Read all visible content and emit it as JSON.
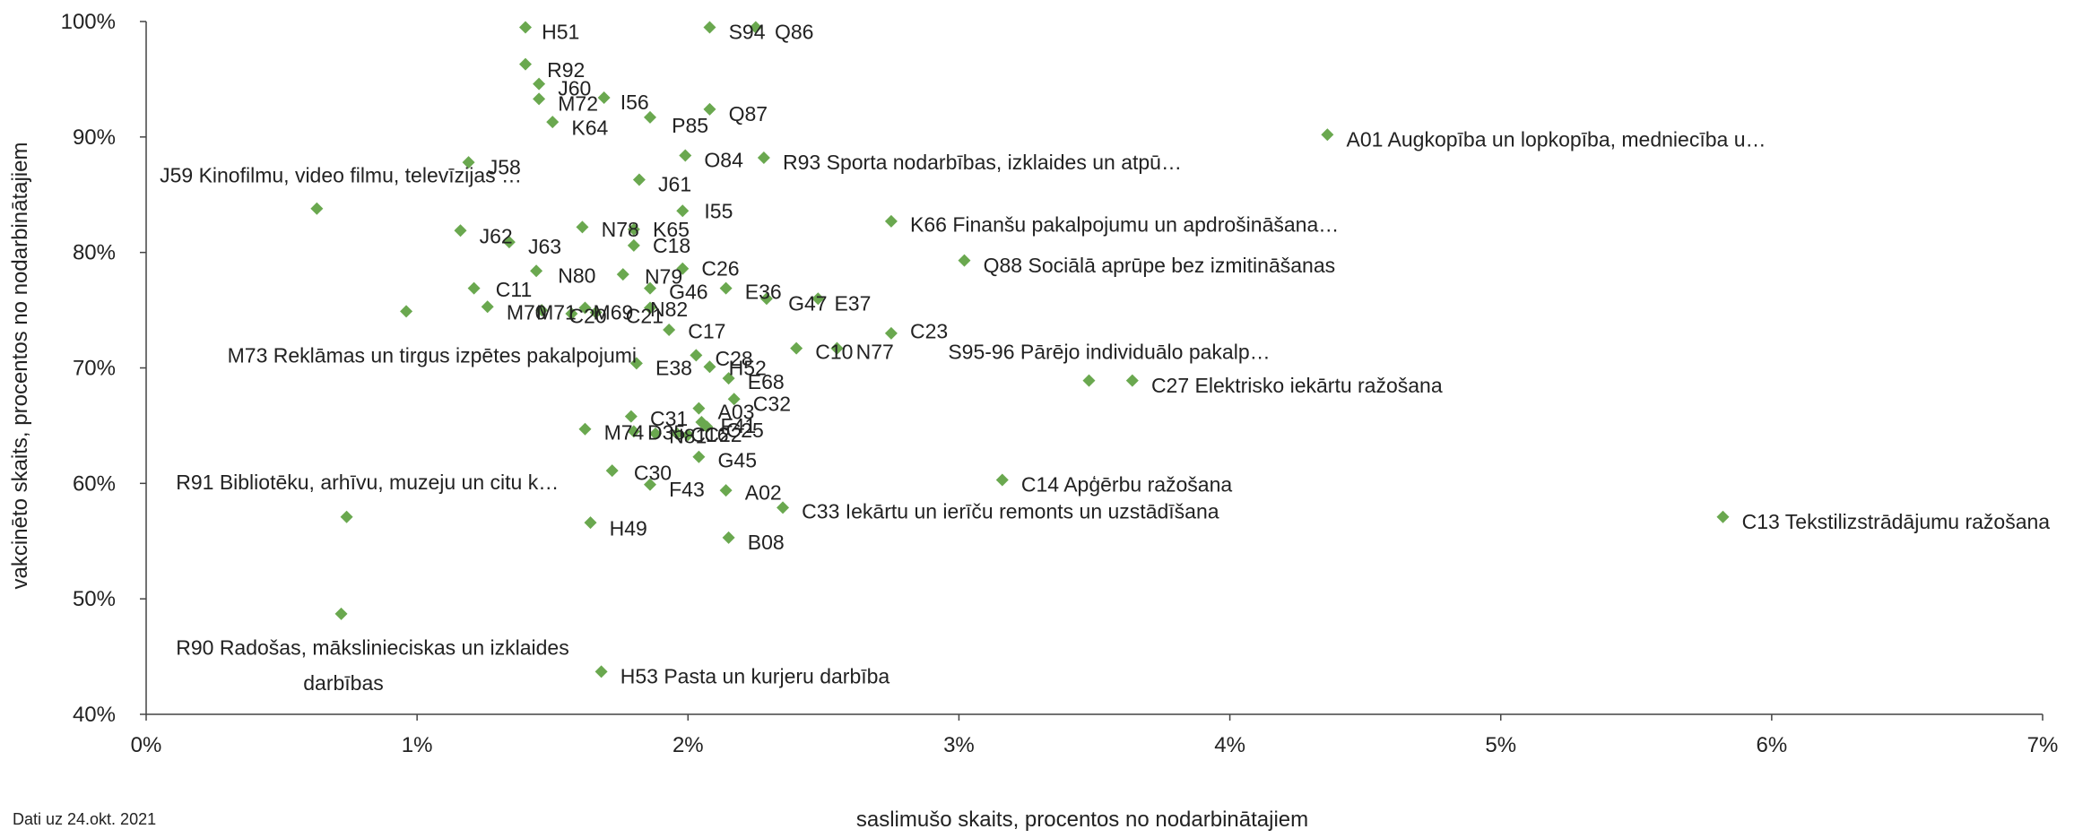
{
  "chart_data": {
    "type": "scatter",
    "xlabel": "saslimušo skaits, procentos no nodarbinātajiem",
    "ylabel": "vakcinēto skaits, procentos no nodarbinātajiem",
    "xlim": [
      0,
      7
    ],
    "ylim": [
      40,
      100
    ],
    "x_ticks": [
      "0%",
      "1%",
      "2%",
      "3%",
      "4%",
      "5%",
      "6%",
      "7%"
    ],
    "y_ticks": [
      "40%",
      "50%",
      "60%",
      "70%",
      "80%",
      "90%",
      "100%"
    ],
    "marker_color": "#6aa84f",
    "grid": false,
    "points": [
      {
        "label": "H51",
        "x": 1.4,
        "y": 99.5
      },
      {
        "label": "S94",
        "x": 2.08,
        "y": 99.5
      },
      {
        "label": "Q86",
        "x": 2.25,
        "y": 99.5
      },
      {
        "label": "R92",
        "x": 1.4,
        "y": 96.3
      },
      {
        "label": "J60",
        "x": 1.45,
        "y": 94.6
      },
      {
        "label": "M72",
        "x": 1.45,
        "y": 93.3
      },
      {
        "label": "I56",
        "x": 1.69,
        "y": 93.4
      },
      {
        "label": "Q87",
        "x": 2.08,
        "y": 92.4
      },
      {
        "label": "P85",
        "x": 1.86,
        "y": 91.7
      },
      {
        "label": "K64",
        "x": 1.5,
        "y": 91.3
      },
      {
        "label": "A01 Augkopība un lopkopība, medniecība u…",
        "x": 4.36,
        "y": 90.2
      },
      {
        "label": "O84",
        "x": 1.99,
        "y": 88.4
      },
      {
        "label": "R93 Sporta nodarbības, izklaides un atpū…",
        "x": 2.28,
        "y": 88.2
      },
      {
        "label": "J58",
        "x": 1.19,
        "y": 87.8
      },
      {
        "label": "J61",
        "x": 1.82,
        "y": 86.3
      },
      {
        "label": "J59 Kinofilmu, video filmu, televīzijas …",
        "x": 0.63,
        "y": 83.8
      },
      {
        "label": "I55",
        "x": 1.98,
        "y": 83.6
      },
      {
        "label": "K66 Finanšu pakalpojumu un apdrošināšana…",
        "x": 2.75,
        "y": 82.7
      },
      {
        "label": "N78",
        "x": 1.61,
        "y": 82.2
      },
      {
        "label": "K65",
        "x": 1.8,
        "y": 82.0
      },
      {
        "label": "J62",
        "x": 1.16,
        "y": 81.9
      },
      {
        "label": "J63",
        "x": 1.34,
        "y": 80.9
      },
      {
        "label": "C18",
        "x": 1.8,
        "y": 80.6
      },
      {
        "label": "Q88 Sociālā aprūpe bez izmitināšanas",
        "x": 3.02,
        "y": 79.3
      },
      {
        "label": "N80",
        "x": 1.44,
        "y": 78.4
      },
      {
        "label": "C26",
        "x": 1.98,
        "y": 78.6
      },
      {
        "label": "N79",
        "x": 1.76,
        "y": 78.1
      },
      {
        "label": "C11",
        "x": 1.21,
        "y": 76.9
      },
      {
        "label": "G46",
        "x": 1.86,
        "y": 76.9
      },
      {
        "label": "E36",
        "x": 2.14,
        "y": 76.9
      },
      {
        "label": "G47",
        "x": 2.29,
        "y": 76.0
      },
      {
        "label": "E37",
        "x": 2.48,
        "y": 76.0
      },
      {
        "label": "M70",
        "x": 1.26,
        "y": 75.3
      },
      {
        "label": "M71",
        "x": 1.46,
        "y": 75.0
      },
      {
        "label": "M69",
        "x": 1.62,
        "y": 75.2
      },
      {
        "label": "C20",
        "x": 1.57,
        "y": 74.7
      },
      {
        "label": "C21",
        "x": 1.66,
        "y": 74.8
      },
      {
        "label": "N82",
        "x": 1.86,
        "y": 75.2
      },
      {
        "label": "M73 Reklāmas un tirgus izpētes pakalpojumi",
        "x": 0.96,
        "y": 74.9
      },
      {
        "label": "C17",
        "x": 1.93,
        "y": 73.3
      },
      {
        "label": "C23",
        "x": 2.75,
        "y": 73.0
      },
      {
        "label": "C10",
        "x": 2.4,
        "y": 71.7
      },
      {
        "label": "N77",
        "x": 2.55,
        "y": 71.7
      },
      {
        "label": "S95-96 Pārējo individuālo pakalp…",
        "x": 2.55,
        "y": 71.7
      },
      {
        "label": "E38",
        "x": 1.81,
        "y": 70.4
      },
      {
        "label": "C28",
        "x": 2.03,
        "y": 71.1
      },
      {
        "label": "H52",
        "x": 2.08,
        "y": 70.1
      },
      {
        "label": "E68",
        "x": 2.15,
        "y": 69.1
      },
      {
        "label": "C27 Elektrisko iekārtu ražošana",
        "x": 3.48,
        "y": 68.9
      },
      {
        "label": "C27 Elektrisko iekārtu ražošana",
        "x": 3.64,
        "y": 68.9
      },
      {
        "label": "C32",
        "x": 2.17,
        "y": 67.3
      },
      {
        "label": "A03",
        "x": 2.04,
        "y": 66.5
      },
      {
        "label": "C31",
        "x": 1.79,
        "y": 65.8
      },
      {
        "label": "F41",
        "x": 2.05,
        "y": 65.3
      },
      {
        "label": "C25",
        "x": 2.07,
        "y": 64.9
      },
      {
        "label": "M74",
        "x": 1.62,
        "y": 64.7
      },
      {
        "label": "D35",
        "x": 1.8,
        "y": 64.5
      },
      {
        "label": "N81",
        "x": 1.88,
        "y": 64.3
      },
      {
        "label": "C16",
        "x": 1.96,
        "y": 64.3
      },
      {
        "label": "C22",
        "x": 2.0,
        "y": 64.2
      },
      {
        "label": "G45",
        "x": 2.04,
        "y": 62.3
      },
      {
        "label": "C30",
        "x": 1.72,
        "y": 61.1
      },
      {
        "label": "C14 Apģērbu ražošana",
        "x": 3.16,
        "y": 60.3
      },
      {
        "label": "F43",
        "x": 1.86,
        "y": 59.9
      },
      {
        "label": "A02",
        "x": 2.14,
        "y": 59.4
      },
      {
        "label": "C33 Iekārtu un ierīču remonts un uzstādīšana",
        "x": 2.35,
        "y": 57.9
      },
      {
        "label": "R91 Bibliotēku, arhīvu, muzeju un citu k…",
        "x": 0.74,
        "y": 57.1
      },
      {
        "label": "C13 Tekstilizstrādājumu ražošana",
        "x": 5.82,
        "y": 57.1
      },
      {
        "label": "H49",
        "x": 1.64,
        "y": 56.6
      },
      {
        "label": "B08",
        "x": 2.15,
        "y": 55.3
      },
      {
        "label": "R90 Radošas, mākslinieciskas un izklaides darbības",
        "x": 0.72,
        "y": 48.7
      },
      {
        "label": "H53 Pasta un kurjeru darbība",
        "x": 1.68,
        "y": 43.7
      }
    ],
    "labels": [
      {
        "text": "H51",
        "x": 1.46,
        "y": 99.1
      },
      {
        "text": "S94",
        "x": 2.15,
        "y": 99.1
      },
      {
        "text": "Q86",
        "x": 2.32,
        "y": 99.1
      },
      {
        "text": "R92",
        "x": 1.48,
        "y": 95.8
      },
      {
        "text": "J60",
        "x": 1.52,
        "y": 94.2
      },
      {
        "text": "M72",
        "x": 1.52,
        "y": 92.9
      },
      {
        "text": "I56",
        "x": 1.75,
        "y": 93.0
      },
      {
        "text": "Q87",
        "x": 2.15,
        "y": 92.0
      },
      {
        "text": "P85",
        "x": 1.94,
        "y": 91.0
      },
      {
        "text": "K64",
        "x": 1.57,
        "y": 90.8
      },
      {
        "text": "A01 Augkopība un lopkopība, medniecība u…",
        "x": 4.43,
        "y": 89.8
      },
      {
        "text": "O84",
        "x": 2.06,
        "y": 88.0
      },
      {
        "text": "R93 Sporta nodarbības, izklaides un atpū…",
        "x": 2.35,
        "y": 87.8
      },
      {
        "text": "J58",
        "x": 1.26,
        "y": 87.4
      },
      {
        "text": "J61",
        "x": 1.89,
        "y": 85.9
      },
      {
        "text": "J59 Kinofilmu, video filmu, televīzijas …",
        "x": 0.05,
        "y": 86.7
      },
      {
        "text": "I55",
        "x": 2.06,
        "y": 83.6
      },
      {
        "text": "K66 Finanšu pakalpojumu un apdrošināšana…",
        "x": 2.82,
        "y": 82.4
      },
      {
        "text": "N78",
        "x": 1.68,
        "y": 82.0
      },
      {
        "text": "K65",
        "x": 1.87,
        "y": 82.0
      },
      {
        "text": "J62",
        "x": 1.23,
        "y": 81.4
      },
      {
        "text": "J63",
        "x": 1.41,
        "y": 80.5
      },
      {
        "text": "C18",
        "x": 1.87,
        "y": 80.6
      },
      {
        "text": "Q88 Sociālā aprūpe bez izmitināšanas",
        "x": 3.09,
        "y": 78.9
      },
      {
        "text": "N80",
        "x": 1.52,
        "y": 78.0
      },
      {
        "text": "C26",
        "x": 2.05,
        "y": 78.6
      },
      {
        "text": "N79",
        "x": 1.84,
        "y": 77.9
      },
      {
        "text": "C11",
        "x": 1.29,
        "y": 76.8
      },
      {
        "text": "G46",
        "x": 1.93,
        "y": 76.6
      },
      {
        "text": "E36",
        "x": 2.21,
        "y": 76.6
      },
      {
        "text": "G47",
        "x": 2.37,
        "y": 75.6
      },
      {
        "text": "E37",
        "x": 2.54,
        "y": 75.6
      },
      {
        "text": "M70",
        "x": 1.33,
        "y": 74.8
      },
      {
        "text": "M71",
        "x": 1.44,
        "y": 74.8
      },
      {
        "text": "M69",
        "x": 1.65,
        "y": 74.8
      },
      {
        "text": "C20",
        "x": 1.56,
        "y": 74.5
      },
      {
        "text": "C21",
        "x": 1.77,
        "y": 74.5
      },
      {
        "text": "N82",
        "x": 1.86,
        "y": 75.1
      },
      {
        "text": "M73 Reklāmas un tirgus izpētes pakalpojumi",
        "x": 0.3,
        "y": 71.1
      },
      {
        "text": "C17",
        "x": 2.0,
        "y": 73.2
      },
      {
        "text": "C23",
        "x": 2.82,
        "y": 73.2
      },
      {
        "text": "C10",
        "x": 2.47,
        "y": 71.4
      },
      {
        "text": "N77",
        "x": 2.62,
        "y": 71.4
      },
      {
        "text": "S95-96 Pārējo individuālo pakalp…",
        "x": 2.96,
        "y": 71.4
      },
      {
        "text": "E38",
        "x": 1.88,
        "y": 70.0
      },
      {
        "text": "C28",
        "x": 2.1,
        "y": 70.8
      },
      {
        "text": "H52",
        "x": 2.15,
        "y": 70.0
      },
      {
        "text": "E68",
        "x": 2.22,
        "y": 68.8
      },
      {
        "text": "C27 Elektrisko iekārtu ražošana",
        "x": 3.71,
        "y": 68.5
      },
      {
        "text": "C32",
        "x": 2.24,
        "y": 66.9
      },
      {
        "text": "A03",
        "x": 2.11,
        "y": 66.2
      },
      {
        "text": "C31",
        "x": 1.86,
        "y": 65.6
      },
      {
        "text": "F41",
        "x": 2.12,
        "y": 65.0
      },
      {
        "text": "C25",
        "x": 2.14,
        "y": 64.6
      },
      {
        "text": "M74",
        "x": 1.69,
        "y": 64.4
      },
      {
        "text": "D35",
        "x": 1.85,
        "y": 64.4
      },
      {
        "text": "N81",
        "x": 1.93,
        "y": 64.1
      },
      {
        "text": "C16",
        "x": 2.01,
        "y": 64.2
      },
      {
        "text": "C22",
        "x": 2.06,
        "y": 64.2
      },
      {
        "text": "G45",
        "x": 2.11,
        "y": 62.0
      },
      {
        "text": "C30",
        "x": 1.8,
        "y": 60.9
      },
      {
        "text": "C14 Apģērbu ražošana",
        "x": 3.23,
        "y": 59.9
      },
      {
        "text": "F43",
        "x": 1.93,
        "y": 59.5
      },
      {
        "text": "A02",
        "x": 2.21,
        "y": 59.2
      },
      {
        "text": "C33 Iekārtu un ierīču remonts un uzstādīšana",
        "x": 2.42,
        "y": 57.6
      },
      {
        "text": "R91 Bibliotēku, arhīvu, muzeju un citu k…",
        "x": 0.11,
        "y": 60.1
      },
      {
        "text": "C13 Tekstilizstrādājumu ražošana",
        "x": 5.89,
        "y": 56.7
      },
      {
        "text": "H49",
        "x": 1.71,
        "y": 56.1
      },
      {
        "text": "B08",
        "x": 2.22,
        "y": 54.9
      },
      {
        "text": "R90 Radošas, mākslinieciskas un izklaides",
        "x": 0.11,
        "y": 45.8
      },
      {
        "text": "darbības",
        "x": 0.58,
        "y": 42.7
      },
      {
        "text": "H53 Pasta un kurjeru darbība",
        "x": 1.75,
        "y": 43.3
      }
    ]
  },
  "footer": {
    "note": "Dati uz 24.okt. 2021"
  }
}
